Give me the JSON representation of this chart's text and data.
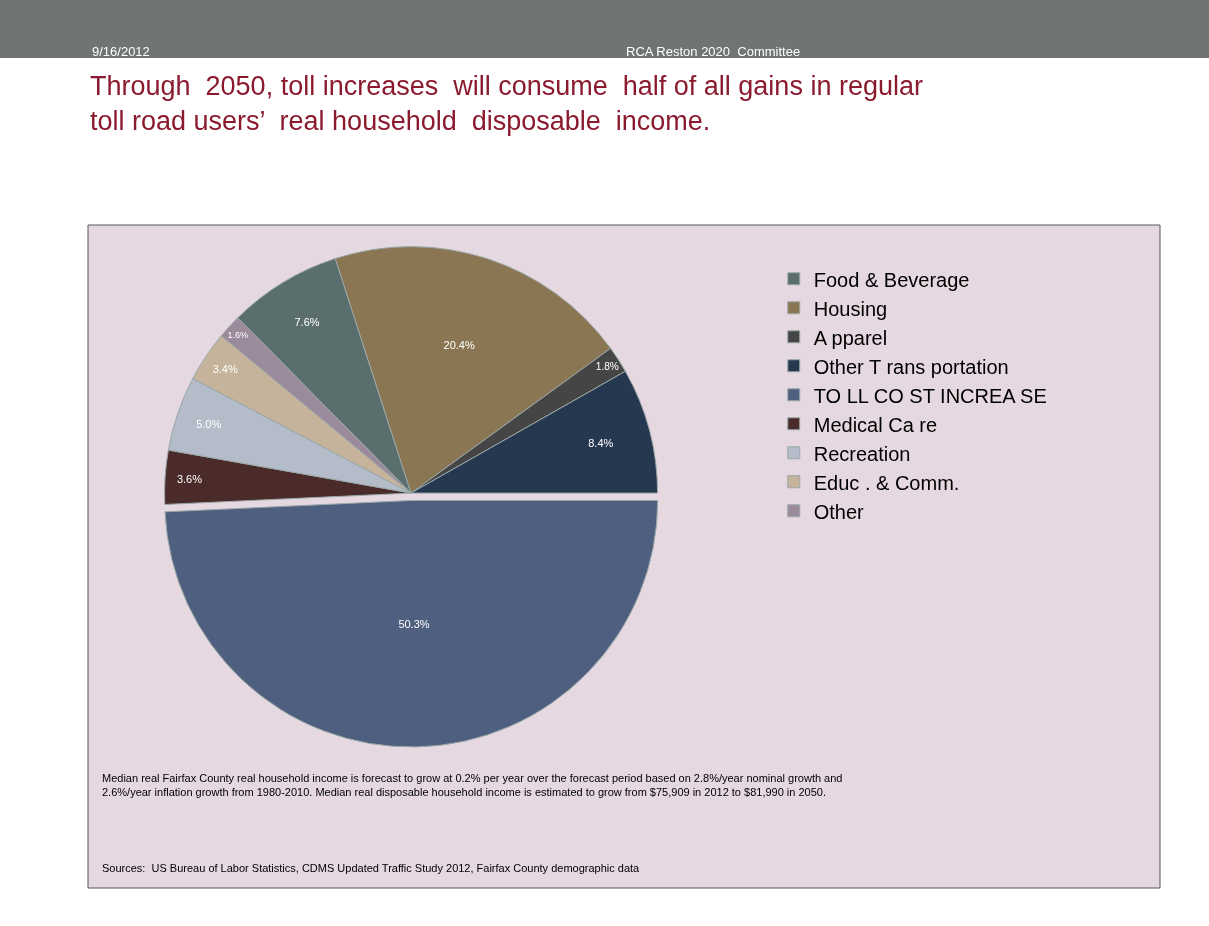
{
  "chart_data": {
    "type": "pie",
    "title": "Through  2050, toll increases  will consume  half of all gains in regular toll road users’  real household  disposable  income.",
    "categories": [
      "Food & Beverage",
      "Housing",
      "A pparel",
      "Other T rans portation",
      "TO LL CO ST INCREA SE",
      "Medical Ca re",
      "Recreation",
      "Educ . & Comm.",
      "Other"
    ],
    "values": [
      7.6,
      20.4,
      1.8,
      8.4,
      50.3,
      3.6,
      5.0,
      3.4,
      1.6
    ],
    "value_labels": [
      "7.6%",
      "20.4%",
      "1.8%",
      "8.4%",
      "50.3%",
      "3.6%",
      "5.0%",
      "3.4%",
      "1.6%"
    ],
    "colors": [
      "#5b6e6e",
      "#8b7653",
      "#454545",
      "#26384f",
      "#4f5f7f",
      "#4a2b2a",
      "#b3bcc8",
      "#c6b39c",
      "#9a8a9c"
    ],
    "legend": "right",
    "annotations": [
      "9/16/2012",
      "RCA Reston 2020  Committee",
      "Median real Fairfax County real household income is forecast to grow at 0.2% per year over the forecast period based on 2.8%/year nominal growth and 2.6%/year inflation growth from 1980-2010. Median real disposable household income is estimated to grow from $75,909 in 2012 to $81,990 in 2050.",
      "Sources:  US Bureau of Labor Statistics, CDMS Updated Traffic Study 2012, Fairfax County demographic data"
    ]
  }
}
